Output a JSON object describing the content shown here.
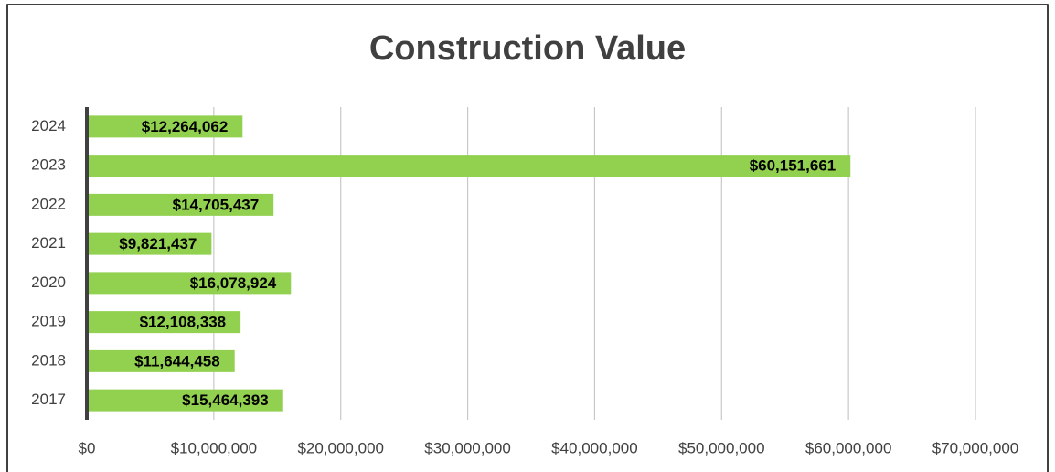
{
  "chart_data": {
    "type": "bar",
    "orientation": "horizontal",
    "title": "Construction Value",
    "categories": [
      "2024",
      "2023",
      "2022",
      "2021",
      "2020",
      "2019",
      "2018",
      "2017"
    ],
    "values": [
      12264062,
      60151661,
      14705437,
      9821437,
      16078924,
      12108338,
      11644458,
      15464393
    ],
    "value_labels": [
      "$12,264,062",
      "$60,151,661",
      "$14,705,437",
      "$9,821,437",
      "$16,078,924",
      "$12,108,338",
      "$11,644,458",
      "$15,464,393"
    ],
    "color": "#92d050",
    "xlim": [
      0,
      70000000
    ],
    "xticks": [
      {
        "value": 0,
        "label": "$0"
      },
      {
        "value": 10000000,
        "label": "$10,000,000"
      },
      {
        "value": 20000000,
        "label": "$20,000,000"
      },
      {
        "value": 30000000,
        "label": "$30,000,000"
      },
      {
        "value": 40000000,
        "label": "$40,000,000"
      },
      {
        "value": 50000000,
        "label": "$50,000,000"
      },
      {
        "value": 60000000,
        "label": "$60,000,000"
      },
      {
        "value": 70000000,
        "label": "$70,000,000"
      }
    ],
    "grid": true
  }
}
